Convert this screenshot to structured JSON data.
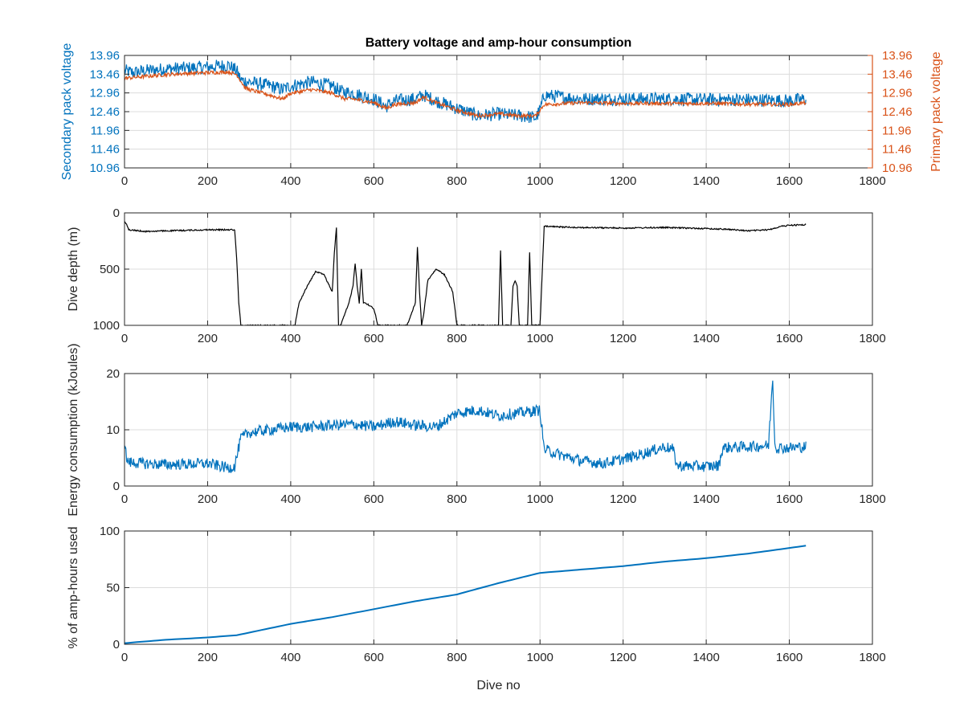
{
  "figure": {
    "title": "Battery voltage and amp-hour consumption",
    "xlabel": "Dive no"
  },
  "colors": {
    "blue": "#0072BD",
    "orange": "#D95319",
    "black": "#000000",
    "axis": "#262626",
    "grid": "#dcdcdc"
  },
  "chart_data": [
    {
      "type": "line",
      "name": "voltage",
      "title": "Battery voltage and amp-hour consumption",
      "xlabel": "",
      "ylabel": "Secondary pack voltage",
      "ylabel_right": "Primary pack voltage",
      "xlim": [
        0,
        1800
      ],
      "ylim": [
        10.96,
        13.96
      ],
      "xticks": [
        0,
        200,
        400,
        600,
        800,
        1000,
        1200,
        1400,
        1600,
        1800
      ],
      "yticks": [
        10.96,
        11.46,
        11.96,
        12.46,
        12.96,
        13.46,
        13.96
      ],
      "ytick_labels": [
        "10.96",
        "11.46",
        "11.96",
        "12.46",
        "12.96",
        "13.46",
        "13.96"
      ],
      "grid": true,
      "series": [
        {
          "name": "Secondary pack voltage",
          "color": "#0072BD",
          "noise": 0.18,
          "x": [
            0,
            20,
            50,
            100,
            150,
            200,
            250,
            270,
            280,
            300,
            350,
            380,
            400,
            450,
            500,
            520,
            550,
            600,
            630,
            650,
            700,
            720,
            750,
            800,
            850,
            900,
            950,
            990,
            1000,
            1010,
            1100,
            1200,
            1300,
            1400,
            1500,
            1600,
            1640
          ],
          "y": [
            13.55,
            13.5,
            13.55,
            13.6,
            13.62,
            13.65,
            13.7,
            13.55,
            13.3,
            13.25,
            13.15,
            13.05,
            13.15,
            13.25,
            13.15,
            13.0,
            12.95,
            12.8,
            12.6,
            12.75,
            12.8,
            12.9,
            12.75,
            12.55,
            12.35,
            12.4,
            12.35,
            12.3,
            12.5,
            12.9,
            12.8,
            12.8,
            12.8,
            12.78,
            12.78,
            12.75,
            12.8
          ]
        },
        {
          "name": "Primary pack voltage",
          "color": "#D95319",
          "noise": 0.05,
          "x": [
            0,
            50,
            100,
            150,
            200,
            250,
            270,
            290,
            300,
            350,
            380,
            400,
            450,
            500,
            530,
            550,
            600,
            630,
            650,
            700,
            720,
            750,
            800,
            850,
            900,
            950,
            990,
            1010,
            1100,
            1200,
            1300,
            1400,
            1500,
            1600,
            1640
          ],
          "y": [
            13.35,
            13.4,
            13.45,
            13.48,
            13.5,
            13.52,
            13.45,
            13.1,
            13.05,
            12.9,
            12.8,
            12.95,
            13.05,
            12.95,
            12.8,
            12.8,
            12.7,
            12.55,
            12.65,
            12.7,
            12.85,
            12.7,
            12.5,
            12.35,
            12.4,
            12.35,
            12.35,
            12.65,
            12.7,
            12.68,
            12.68,
            12.68,
            12.66,
            12.65,
            12.7
          ]
        }
      ]
    },
    {
      "type": "line",
      "name": "depth",
      "title": "",
      "xlabel": "",
      "ylabel": "Dive depth (m)",
      "xlim": [
        0,
        1800
      ],
      "ylim": [
        0,
        1000
      ],
      "y_reversed": true,
      "xticks": [
        0,
        200,
        400,
        600,
        800,
        1000,
        1200,
        1400,
        1600,
        1800
      ],
      "yticks": [
        0,
        500,
        1000
      ],
      "ytick_labels": [
        "0",
        "500",
        "1000"
      ],
      "grid": true,
      "series": [
        {
          "name": "",
          "color": "#000000",
          "noise": 6,
          "x": [
            0,
            5,
            10,
            50,
            100,
            150,
            200,
            250,
            265,
            270,
            275,
            280,
            300,
            350,
            400,
            410,
            420,
            440,
            460,
            480,
            500,
            505,
            510,
            515,
            520,
            540,
            550,
            555,
            560,
            565,
            570,
            575,
            580,
            600,
            610,
            620,
            650,
            680,
            690,
            700,
            705,
            710,
            715,
            720,
            730,
            740,
            750,
            770,
            790,
            800,
            820,
            850,
            890,
            900,
            905,
            910,
            915,
            920,
            930,
            935,
            940,
            945,
            950,
            960,
            970,
            975,
            980,
            990,
            1000,
            1010,
            1050,
            1100,
            1200,
            1300,
            1400,
            1450,
            1500,
            1550,
            1580,
            1600,
            1640
          ],
          "y": [
            70,
            100,
            150,
            165,
            160,
            155,
            150,
            150,
            150,
            400,
            800,
            1000,
            1000,
            1000,
            1000,
            1000,
            800,
            650,
            520,
            550,
            700,
            350,
            130,
            1000,
            1000,
            800,
            650,
            450,
            650,
            800,
            500,
            800,
            800,
            850,
            1000,
            1000,
            1000,
            1000,
            900,
            800,
            300,
            700,
            1000,
            900,
            600,
            550,
            500,
            550,
            700,
            1000,
            1000,
            1000,
            1000,
            1000,
            330,
            1000,
            1000,
            1000,
            1000,
            650,
            600,
            650,
            1000,
            1000,
            1000,
            350,
            1000,
            1000,
            1000,
            120,
            125,
            130,
            135,
            130,
            140,
            145,
            160,
            150,
            120,
            110,
            105
          ]
        }
      ]
    },
    {
      "type": "line",
      "name": "energy",
      "title": "",
      "xlabel": "",
      "ylabel": "Energy consumption (kJoules)",
      "xlim": [
        0,
        1800
      ],
      "ylim": [
        0,
        20
      ],
      "xticks": [
        0,
        200,
        400,
        600,
        800,
        1000,
        1200,
        1400,
        1600,
        1800
      ],
      "yticks": [
        0,
        10,
        20
      ],
      "ytick_labels": [
        "0",
        "10",
        "20"
      ],
      "grid": true,
      "series": [
        {
          "name": "",
          "color": "#0072BD",
          "noise": 1.0,
          "x": [
            0,
            5,
            10,
            50,
            100,
            150,
            200,
            250,
            265,
            280,
            300,
            350,
            400,
            450,
            500,
            550,
            600,
            650,
            700,
            750,
            800,
            850,
            900,
            950,
            1000,
            1005,
            1010,
            1050,
            1100,
            1150,
            1200,
            1250,
            1300,
            1320,
            1330,
            1400,
            1430,
            1440,
            1500,
            1550,
            1560,
            1565,
            1570,
            1600,
            1640
          ],
          "y": [
            7.5,
            5,
            4.2,
            4.0,
            3.8,
            3.9,
            4.0,
            3.2,
            3.5,
            8.5,
            9.5,
            10.0,
            10.5,
            10.5,
            10.8,
            11.0,
            10.5,
            11.5,
            10.8,
            10.5,
            13.0,
            13.5,
            12.5,
            13.0,
            13.5,
            10.0,
            6.5,
            5.5,
            4.5,
            4.0,
            4.8,
            5.8,
            7.0,
            6.5,
            3.6,
            3.5,
            3.6,
            6.8,
            7.0,
            7.2,
            19.5,
            7.5,
            6.8,
            6.8,
            7.0
          ]
        }
      ]
    },
    {
      "type": "line",
      "name": "amphours",
      "title": "",
      "xlabel": "Dive no",
      "ylabel": "% of amp-hours used",
      "xlim": [
        0,
        1800
      ],
      "ylim": [
        0,
        100
      ],
      "xticks": [
        0,
        200,
        400,
        600,
        800,
        1000,
        1200,
        1400,
        1600,
        1800
      ],
      "yticks": [
        0,
        50,
        100
      ],
      "ytick_labels": [
        "0",
        "50",
        "100"
      ],
      "grid": true,
      "series": [
        {
          "name": "",
          "color": "#0072BD",
          "noise": 0,
          "x": [
            0,
            100,
            200,
            270,
            400,
            500,
            600,
            700,
            800,
            900,
            1000,
            1100,
            1200,
            1300,
            1400,
            1500,
            1600,
            1640
          ],
          "y": [
            1,
            4,
            6,
            8,
            18,
            24,
            31,
            38,
            44,
            54,
            63,
            66,
            69,
            73,
            76,
            80,
            85,
            87
          ]
        }
      ]
    }
  ]
}
